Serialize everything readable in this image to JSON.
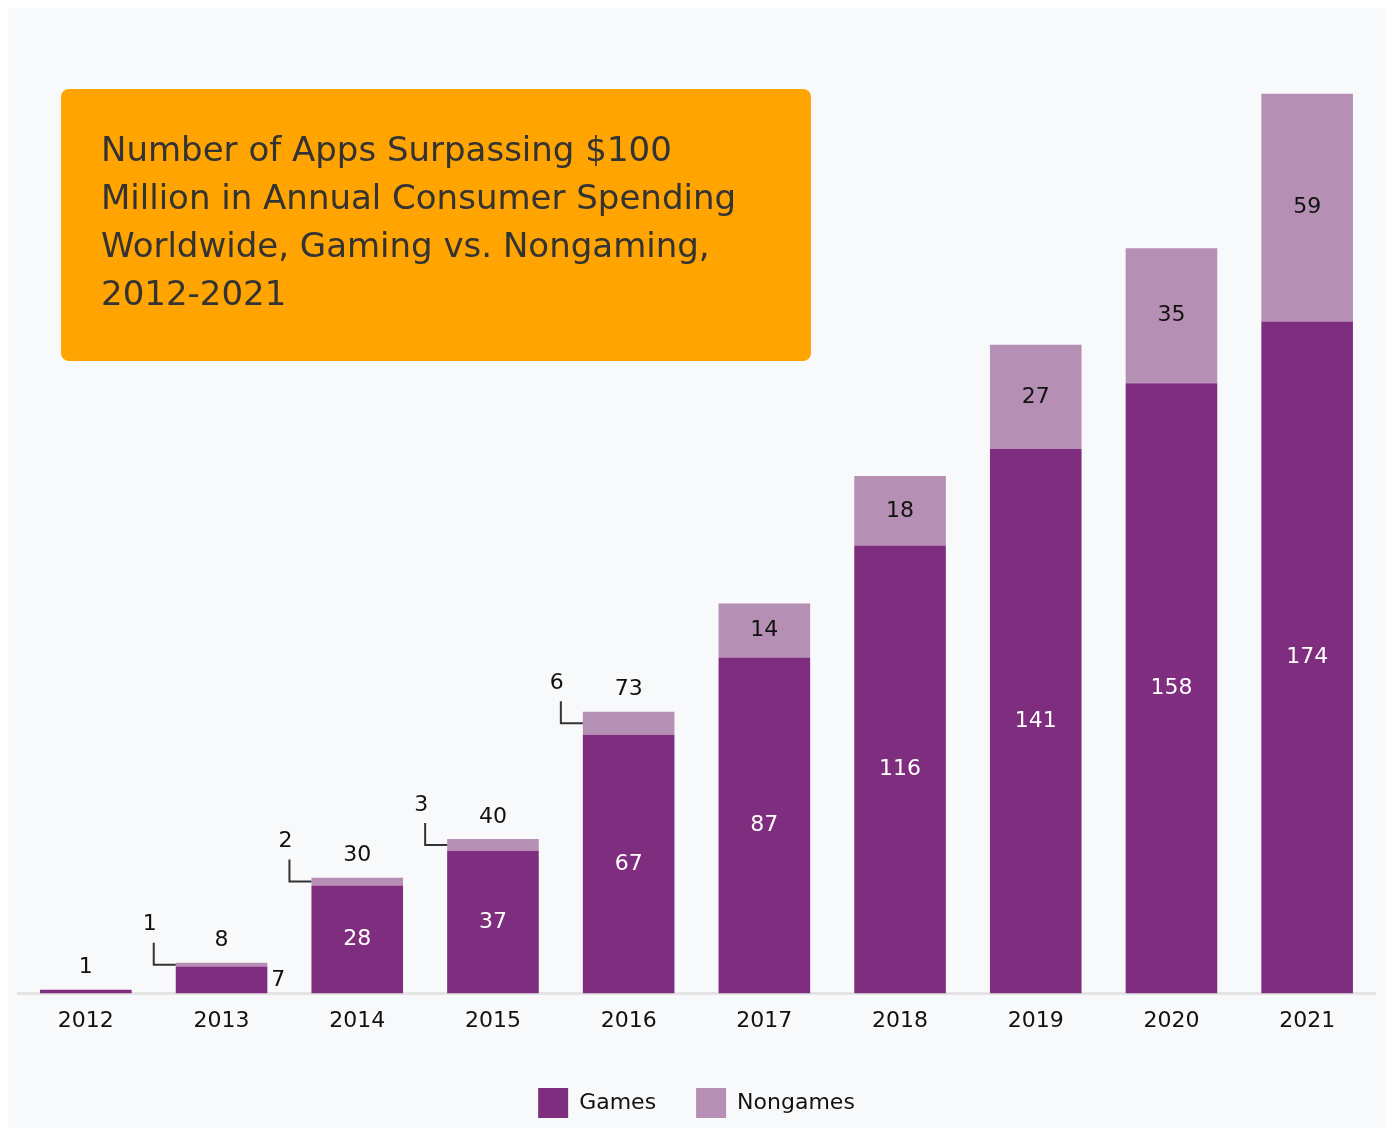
{
  "chart_data": {
    "type": "bar",
    "title": "Number of Apps Surpassing $100 Million in Annual Consumer Spending Worldwide, Gaming vs. Nongaming, 2012-2021",
    "categories": [
      "2012",
      "2013",
      "2014",
      "2015",
      "2016",
      "2017",
      "2018",
      "2019",
      "2020",
      "2021"
    ],
    "stacked": true,
    "legend": "bottom",
    "grid": false,
    "series": [
      {
        "name": "Games",
        "color": "#7f2d7f",
        "values": [
          1,
          7,
          28,
          37,
          67,
          87,
          116,
          141,
          158,
          174
        ],
        "value_labels": [
          null,
          "7",
          "28",
          "37",
          "67",
          "87",
          "116",
          "141",
          "158",
          "174"
        ]
      },
      {
        "name": "Nongames",
        "color": "#b68fb5",
        "values": [
          0,
          1,
          2,
          3,
          6,
          14,
          18,
          27,
          35,
          59
        ],
        "value_labels": [
          null,
          "1",
          "2",
          "3",
          "6",
          "14",
          "18",
          "27",
          "35",
          "59"
        ]
      }
    ],
    "totals": [
      "1",
      "8",
      "30",
      "40",
      "73",
      null,
      null,
      null,
      null,
      null
    ]
  }
}
